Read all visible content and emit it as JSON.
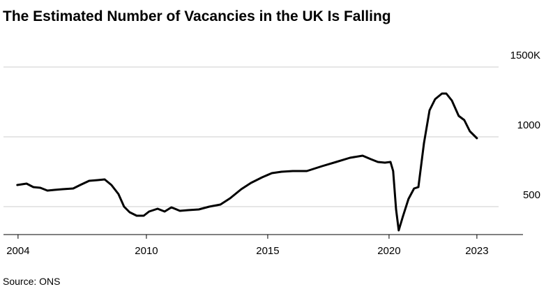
{
  "chart_data": {
    "type": "line",
    "title": "The Estimated Number of Vacancies in the UK Is Falling",
    "source": "Source: ONS",
    "x": [
      2004.68,
      2005.06,
      2005.34,
      2005.63,
      2005.92,
      2006.21,
      2006.55,
      2006.98,
      2007.27,
      2007.64,
      2007.99,
      2008.28,
      2008.56,
      2008.85,
      2009.08,
      2009.31,
      2009.6,
      2009.89,
      2010.11,
      2010.46,
      2010.75,
      2011.03,
      2011.38,
      2011.72,
      2012.16,
      2012.59,
      2013.05,
      2013.45,
      2013.91,
      2014.31,
      2014.77,
      2015.17,
      2015.57,
      2016.03,
      2016.61,
      2017.24,
      2017.82,
      2018.39,
      2018.91,
      2019.25,
      2019.54,
      2019.83,
      2020.06,
      2020.17,
      2020.29,
      2020.4,
      2020.57,
      2020.8,
      2021.03,
      2021.21,
      2021.44,
      2021.67,
      2021.9,
      2022.18,
      2022.36,
      2022.59,
      2022.87,
      2023.1,
      2023.33,
      2023.62
    ],
    "series": [
      {
        "name": "Vacancies",
        "color": "#000000",
        "values": [
          655,
          665,
          640,
          635,
          615,
          620,
          625,
          630,
          655,
          685,
          690,
          695,
          655,
          590,
          500,
          460,
          435,
          435,
          465,
          485,
          465,
          495,
          470,
          475,
          480,
          500,
          515,
          560,
          625,
          670,
          710,
          740,
          750,
          755,
          755,
          790,
          820,
          850,
          865,
          840,
          820,
          815,
          820,
          755,
          480,
          330,
          430,
          555,
          630,
          640,
          955,
          1190,
          1270,
          1310,
          1310,
          1260,
          1150,
          1120,
          1040,
          990
        ]
      }
    ],
    "xlim": [
      2004.11,
      2025.52
    ],
    "xticks": [
      {
        "value": 2004.71,
        "label": "2004"
      },
      2010,
      2015,
      2020,
      {
        "value": 2023.62,
        "label": "2023"
      }
    ],
    "ylim": [
      300,
      1500
    ],
    "yticks": [
      500,
      1000,
      {
        "value": 1500,
        "label": "1500K"
      }
    ],
    "grid": true
  }
}
